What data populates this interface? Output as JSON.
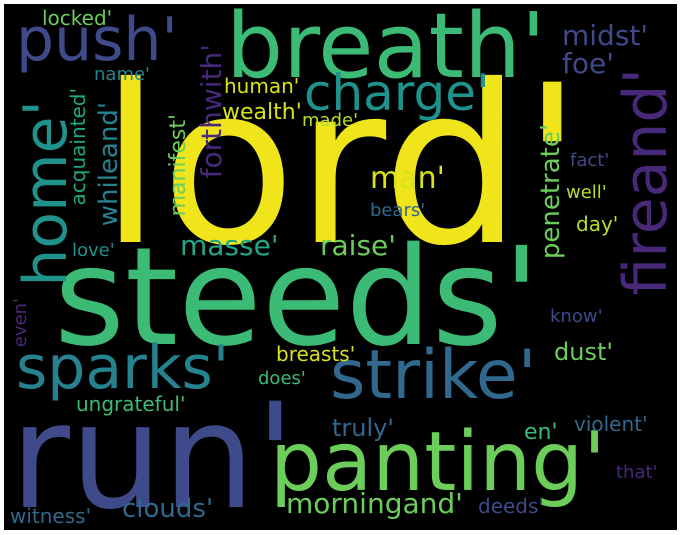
{
  "colors": {
    "background": "#000000",
    "yellow": "#f0e51a",
    "green_light": "#6ccd5a",
    "green": "#3bbb75",
    "teal": "#22a784",
    "cyan": "#1f928c",
    "blue_teal": "#26828e",
    "blue": "#31688e",
    "indigo": "#3e4a89",
    "purple": "#482878",
    "dark_purple": "#440154",
    "lime": "#b5de2b",
    "pale_yellow": "#d8e219"
  },
  "words": {
    "lord": "lord'",
    "steeds": "steeds'",
    "run": "run'",
    "breath": "breath'",
    "panting": "panting'",
    "strike": "strike'",
    "fireand": "fireand'",
    "sparks": "sparks'",
    "push": "push'",
    "home": "home'",
    "charge": "charge'",
    "morningand": "morningand'",
    "clouds": "clouds'",
    "masse": "masse'",
    "raise": "raise'",
    "man": "man'",
    "midst": "midst'",
    "foe": "foe'",
    "locked": "locked'",
    "name": "name'",
    "human": "human'",
    "wealth": "wealth'",
    "made": "made'",
    "forthwith": "forthwith'",
    "manifest": "manifest'",
    "whileand": "whileand'",
    "acquainted": "acquainted'",
    "love": "love'",
    "penetrate": "penetrate'",
    "fact": "fact'",
    "well": "well'",
    "bears": "bears'",
    "day": "day'",
    "know": "know'",
    "breasts": "breasts'",
    "does": "does'",
    "dust": "dust'",
    "even": "even'",
    "ungrateful": "ungrateful'",
    "truly": "truly'",
    "en": "en'",
    "violent": "violent'",
    "that": "that'",
    "deeds": "deeds'",
    "witness": "witness'"
  }
}
